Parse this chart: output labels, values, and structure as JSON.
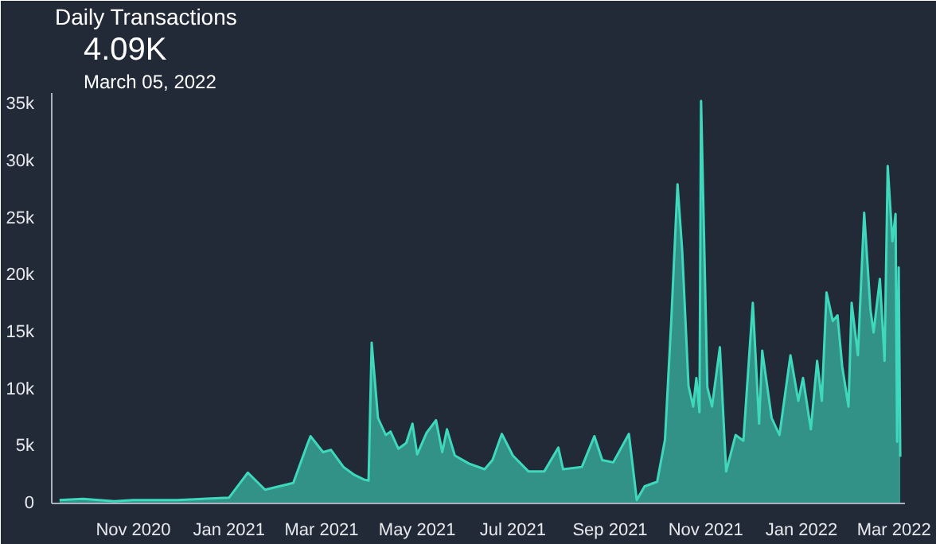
{
  "chart_data": {
    "type": "area",
    "title": "Daily Transactions",
    "subtitle": "4.09K",
    "annotations": [
      "March 05, 2022"
    ],
    "x": [
      "2020-09-15",
      "2020-09-30",
      "2020-10-20",
      "2020-11-01",
      "2020-11-29",
      "2021-01-01",
      "2021-01-13",
      "2021-01-24",
      "2021-02-11",
      "2021-02-20",
      "2021-02-22",
      "2021-03-02",
      "2021-03-07",
      "2021-03-15",
      "2021-03-22",
      "2021-03-28",
      "2021-03-31",
      "2021-04-02",
      "2021-04-06",
      "2021-04-11",
      "2021-04-14",
      "2021-04-19",
      "2021-04-24",
      "2021-04-28",
      "2021-05-01",
      "2021-05-07",
      "2021-05-13",
      "2021-05-17",
      "2021-05-20",
      "2021-05-25",
      "2021-06-03",
      "2021-06-13",
      "2021-06-18",
      "2021-06-24",
      "2021-07-01",
      "2021-07-11",
      "2021-07-21",
      "2021-07-30",
      "2021-08-02",
      "2021-08-14",
      "2021-08-22",
      "2021-08-27",
      "2021-09-03",
      "2021-09-13",
      "2021-09-18",
      "2021-09-23",
      "2021-10-01",
      "2021-10-06",
      "2021-10-10",
      "2021-10-14",
      "2021-10-17",
      "2021-10-21",
      "2021-10-24",
      "2021-10-26",
      "2021-10-28",
      "2021-10-29",
      "2021-11-02",
      "2021-11-05",
      "2021-11-10",
      "2021-11-14",
      "2021-11-20",
      "2021-11-25",
      "2021-12-01",
      "2021-12-05",
      "2021-12-07",
      "2021-12-13",
      "2021-12-18",
      "2021-12-25",
      "2021-12-30",
      "2022-01-02",
      "2022-01-07",
      "2022-01-11",
      "2022-01-14",
      "2022-01-17",
      "2022-01-21",
      "2022-01-24",
      "2022-01-27",
      "2022-01-31",
      "2022-02-02",
      "2022-02-06",
      "2022-02-10",
      "2022-02-14",
      "2022-02-16",
      "2022-02-20",
      "2022-02-23",
      "2022-02-25",
      "2022-02-28",
      "2022-03-02",
      "2022-03-03",
      "2022-03-04",
      "2022-03-05"
    ],
    "series": [
      {
        "color": "#3ed8bd",
        "values": [
          300,
          400,
          200,
          300,
          300,
          500,
          2700,
          1200,
          1800,
          5200,
          5900,
          4500,
          4700,
          3200,
          2500,
          2100,
          2000,
          14100,
          7500,
          6000,
          6300,
          4800,
          5300,
          7000,
          4300,
          6200,
          7300,
          4500,
          6500,
          4200,
          3500,
          3000,
          3800,
          6100,
          4200,
          2800,
          2800,
          4900,
          3000,
          3200,
          5900,
          3800,
          3600,
          6100,
          300,
          1500,
          1900,
          5600,
          16000,
          28000,
          22100,
          10300,
          8500,
          11000,
          8000,
          35300,
          10200,
          8500,
          13700,
          2800,
          6000,
          5500,
          17600,
          7000,
          13400,
          7500,
          6000,
          13000,
          9000,
          11000,
          6500,
          12500,
          9000,
          18500,
          16000,
          16500,
          12000,
          8500,
          17600,
          13000,
          25500,
          17000,
          15000,
          19700,
          12500,
          29600,
          23000,
          25400,
          5400,
          20700,
          4090
        ]
      }
    ],
    "xlim": [
      "2020-09-10",
      "2022-03-08"
    ],
    "ylim": [
      0,
      36000
    ],
    "xticks": [
      {
        "value": "2020-11-01",
        "label": "Nov 2020"
      },
      {
        "value": "2021-01-01",
        "label": "Jan 2021"
      },
      {
        "value": "2021-03-01",
        "label": "Mar 2021"
      },
      {
        "value": "2021-05-01",
        "label": "May 2021"
      },
      {
        "value": "2021-07-01",
        "label": "Jul 2021"
      },
      {
        "value": "2021-09-01",
        "label": "Sep 2021"
      },
      {
        "value": "2021-11-01",
        "label": "Nov 2021"
      },
      {
        "value": "2022-01-01",
        "label": "Jan 2022"
      },
      {
        "value": "2022-03-01",
        "label": "Mar 2022"
      }
    ],
    "yticks": [
      {
        "value": 0,
        "label": "0"
      },
      {
        "value": 5000,
        "label": "5k"
      },
      {
        "value": 10000,
        "label": "10k"
      },
      {
        "value": 15000,
        "label": "15k"
      },
      {
        "value": 20000,
        "label": "20k"
      },
      {
        "value": 25000,
        "label": "25k"
      },
      {
        "value": 30000,
        "label": "30k"
      },
      {
        "value": 35000,
        "label": "35k"
      }
    ],
    "grid": false
  }
}
